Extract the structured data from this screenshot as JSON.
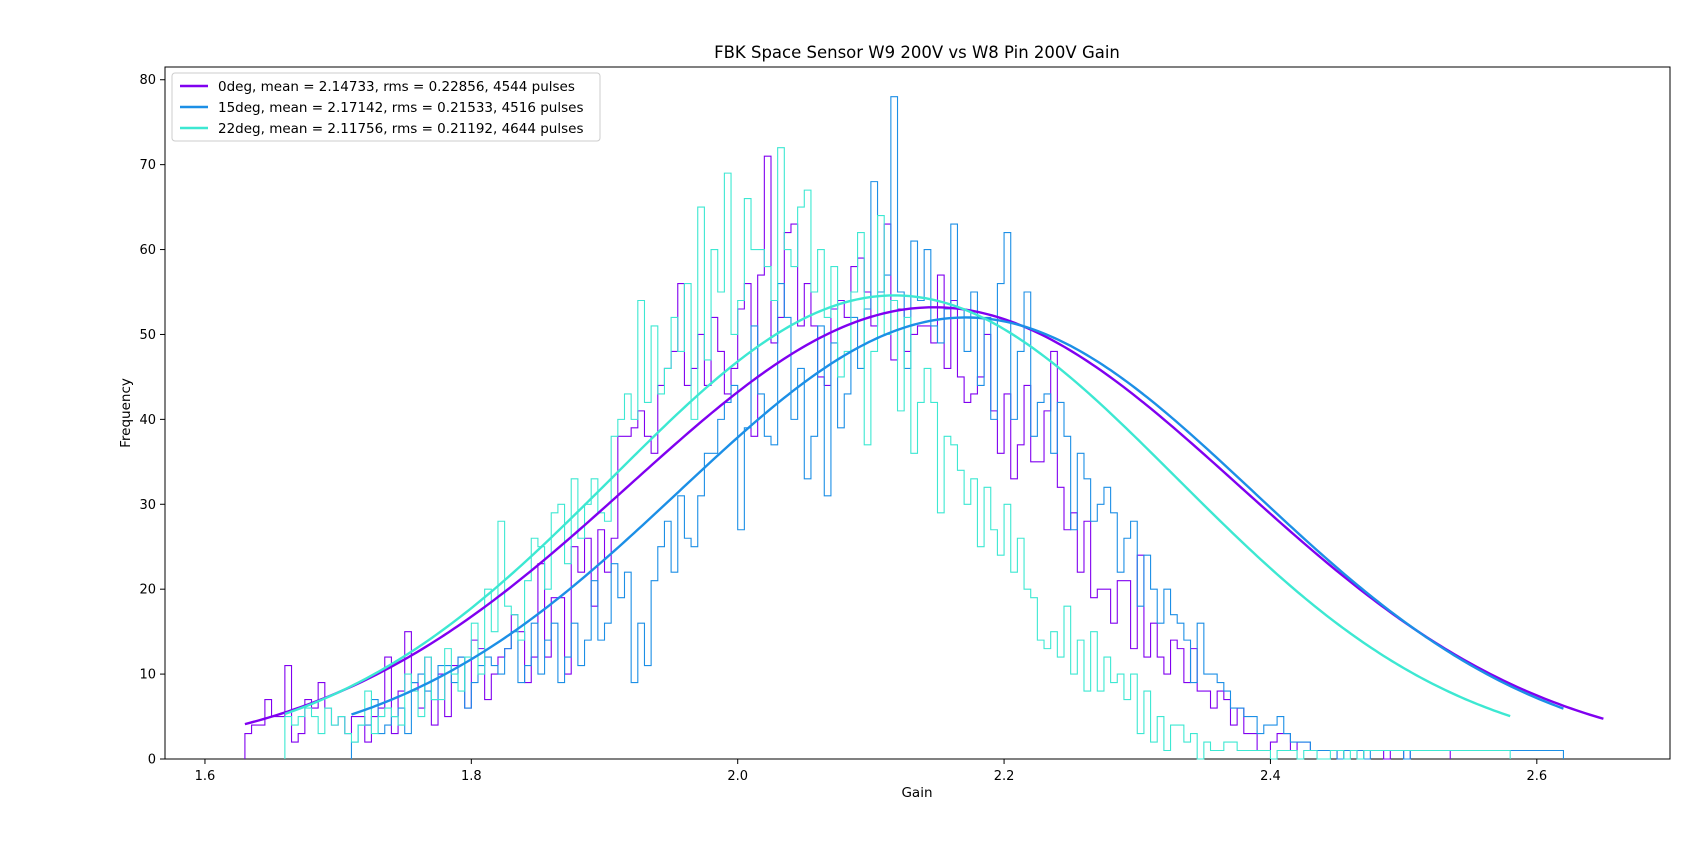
{
  "chart_data": {
    "type": "line",
    "title": "FBK Space Sensor W9 200V vs W8 Pin 200V Gain",
    "xlabel": "Gain",
    "ylabel": "Frequency",
    "xlim": [
      1.57,
      2.7
    ],
    "ylim": [
      0,
      81.5
    ],
    "xticks": [
      1.6,
      1.8,
      2.0,
      2.2,
      2.4,
      2.6
    ],
    "xtick_labels": [
      "1.6",
      "1.8",
      "2.0",
      "2.2",
      "2.4",
      "2.6"
    ],
    "yticks": [
      0,
      10,
      20,
      30,
      40,
      50,
      60,
      70,
      80
    ],
    "ytick_labels": [
      "0",
      "10",
      "20",
      "30",
      "40",
      "50",
      "60",
      "70",
      "80"
    ],
    "grid": false,
    "legend_position": "top-left",
    "bin_width": 0.005,
    "series": [
      {
        "name": "0deg, mean = 2.14733, rms = 0.22856, 4544 pulses",
        "color": "#8000f0",
        "fit": {
          "mean": 2.14733,
          "sigma": 0.22856,
          "amplitude": 53.2,
          "x_start": 1.63,
          "x_end": 2.65
        },
        "hist": {
          "x_start": 1.63,
          "values": [
            3,
            4,
            4,
            7,
            5,
            5,
            11,
            2,
            3,
            7,
            6,
            9,
            6,
            4,
            5,
            3,
            5,
            5,
            2,
            5,
            6,
            12,
            3,
            8,
            15,
            9,
            6,
            12,
            4,
            10,
            5,
            11,
            12,
            6,
            14,
            13,
            7,
            10,
            12,
            13,
            17,
            15,
            9,
            12,
            23,
            12,
            19,
            19,
            10,
            25,
            22,
            26,
            18,
            27,
            22,
            26,
            38,
            38,
            39,
            41,
            38,
            36,
            44,
            46,
            48,
            56,
            44,
            46,
            50,
            44,
            52,
            48,
            43,
            46,
            53,
            56,
            38,
            57,
            71,
            49,
            52,
            62,
            63,
            51,
            56,
            51,
            45,
            44,
            53,
            54,
            52,
            58,
            59,
            55,
            51,
            55,
            63,
            47,
            53,
            48,
            50,
            51,
            51,
            49,
            57,
            46,
            54,
            45,
            42,
            43,
            45,
            50,
            41,
            36,
            43,
            33,
            37,
            44,
            35,
            35,
            41,
            48,
            32,
            27,
            29,
            22,
            28,
            19,
            20,
            20,
            16,
            21,
            21,
            13,
            24,
            12,
            16,
            12,
            10,
            14,
            13,
            9,
            13,
            8,
            8,
            6,
            8,
            7,
            4,
            6,
            3,
            3,
            1,
            1,
            2,
            3,
            3,
            1,
            2,
            2,
            1,
            1,
            1,
            1,
            0,
            1,
            1,
            0,
            1,
            1,
            1,
            0,
            1,
            1,
            0,
            1,
            1,
            1,
            1,
            1,
            1
          ]
        }
      },
      {
        "name": "15deg, mean = 2.17142, rms = 0.21533, 4516 pulses",
        "color": "#1c8fe6",
        "fit": {
          "mean": 2.17142,
          "sigma": 0.21533,
          "amplitude": 52.0,
          "x_start": 1.71,
          "x_end": 2.62
        },
        "hist": {
          "x_start": 1.71,
          "values": [
            2,
            4,
            4,
            7,
            3,
            4,
            5,
            6,
            3,
            9,
            10,
            8,
            7,
            11,
            11,
            9,
            12,
            6,
            9,
            11,
            12,
            11,
            10,
            13,
            15,
            9,
            11,
            16,
            10,
            14,
            16,
            9,
            12,
            16,
            11,
            14,
            21,
            14,
            16,
            23,
            19,
            22,
            9,
            16,
            11,
            21,
            25,
            28,
            22,
            31,
            26,
            25,
            31,
            36,
            36,
            40,
            42,
            44,
            27,
            39,
            51,
            43,
            38,
            37,
            56,
            52,
            40,
            46,
            33,
            38,
            51,
            31,
            49,
            39,
            43,
            52,
            46,
            53,
            68,
            55,
            57,
            78,
            55,
            46,
            61,
            54,
            60,
            51,
            49,
            53,
            63,
            53,
            48,
            55,
            44,
            52,
            40,
            56,
            62,
            40,
            48,
            55,
            38,
            42,
            43,
            36,
            42,
            38,
            27,
            36,
            33,
            28,
            30,
            32,
            29,
            22,
            26,
            28,
            18,
            24,
            20,
            16,
            20,
            17,
            16,
            14,
            9,
            16,
            10,
            10,
            9,
            8,
            6,
            6,
            5,
            5,
            3,
            4,
            4,
            5,
            3,
            2,
            2,
            2,
            1,
            1,
            1,
            1,
            0,
            1,
            1,
            1,
            0,
            1,
            1,
            1,
            1,
            1,
            0,
            1,
            1,
            1,
            1,
            1,
            1,
            1,
            1,
            1,
            1,
            1,
            1,
            1,
            1,
            1,
            1,
            1,
            1,
            1,
            1,
            1,
            1,
            1
          ]
        }
      },
      {
        "name": "22deg, mean = 2.11756, rms = 0.21192, 4644 pulses",
        "color": "#3de8d2",
        "fit": {
          "mean": 2.11756,
          "sigma": 0.21192,
          "amplitude": 54.6,
          "x_start": 1.66,
          "x_end": 2.58
        },
        "hist": {
          "x_start": 1.66,
          "values": [
            5,
            4,
            5,
            6,
            5,
            3,
            6,
            4,
            5,
            3,
            2,
            4,
            8,
            3,
            5,
            6,
            5,
            4,
            10,
            8,
            5,
            12,
            7,
            7,
            13,
            10,
            8,
            12,
            16,
            10,
            20,
            15,
            28,
            18,
            17,
            14,
            21,
            26,
            25,
            20,
            29,
            30,
            23,
            33,
            26,
            30,
            33,
            29,
            28,
            38,
            40,
            43,
            40,
            54,
            42,
            51,
            43,
            46,
            52,
            48,
            56,
            40,
            65,
            47,
            60,
            55,
            69,
            50,
            54,
            66,
            60,
            60,
            58,
            54,
            72,
            60,
            58,
            65,
            67,
            55,
            60,
            52,
            58,
            45,
            48,
            55,
            62,
            37,
            48,
            64,
            50,
            54,
            41,
            52,
            36,
            42,
            46,
            42,
            29,
            38,
            37,
            34,
            30,
            33,
            25,
            32,
            27,
            24,
            30,
            22,
            26,
            20,
            19,
            14,
            13,
            15,
            12,
            18,
            10,
            14,
            8,
            15,
            8,
            12,
            9,
            10,
            7,
            10,
            3,
            8,
            2,
            5,
            1,
            4,
            4,
            2,
            3,
            0,
            2,
            1,
            1,
            2,
            2,
            1,
            1,
            1,
            1,
            1,
            0,
            1,
            1,
            1,
            0,
            1,
            1,
            0,
            0,
            1,
            1,
            0,
            1,
            0,
            1,
            1,
            1,
            1,
            1,
            1,
            1,
            1,
            1,
            1,
            1,
            1,
            1,
            1,
            1,
            1,
            1,
            1,
            1,
            1,
            1,
            1
          ]
        }
      }
    ]
  }
}
